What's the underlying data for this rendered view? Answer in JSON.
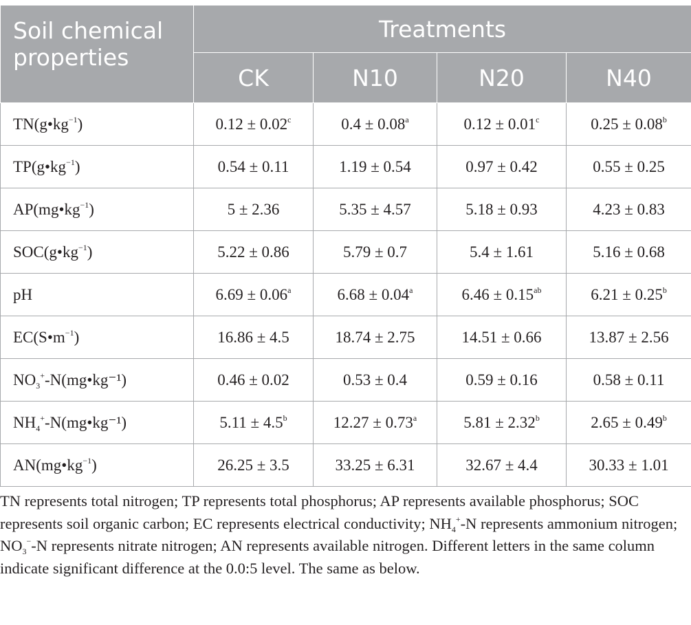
{
  "table": {
    "header": {
      "property_col": "Soil chemical properties",
      "treatments": "Treatments",
      "groups": [
        "CK",
        "N10",
        "N20",
        "N40"
      ]
    },
    "rows": [
      {
        "label": {
          "pre": "TN(g•kg",
          "sup": "−1",
          "sub": "",
          "post": ")"
        },
        "cells": [
          {
            "v": "0.12 ± 0.02",
            "s": "c"
          },
          {
            "v": "0.4 ± 0.08",
            "s": "a"
          },
          {
            "v": "0.12 ± 0.01",
            "s": "c"
          },
          {
            "v": "0.25 ± 0.08",
            "s": "b"
          }
        ]
      },
      {
        "label": {
          "pre": "TP(g•kg",
          "sup": "−1",
          "sub": "",
          "post": ")"
        },
        "cells": [
          {
            "v": "0.54 ± 0.11",
            "s": ""
          },
          {
            "v": "1.19 ± 0.54",
            "s": ""
          },
          {
            "v": "0.97 ± 0.42",
            "s": ""
          },
          {
            "v": "0.55 ± 0.25",
            "s": ""
          }
        ]
      },
      {
        "label": {
          "pre": "AP(mg•kg",
          "sup": "−1",
          "sub": "",
          "post": ")"
        },
        "cells": [
          {
            "v": "5 ± 2.36",
            "s": ""
          },
          {
            "v": "5.35 ± 4.57",
            "s": ""
          },
          {
            "v": "5.18 ± 0.93",
            "s": ""
          },
          {
            "v": "4.23 ± 0.83",
            "s": ""
          }
        ]
      },
      {
        "label": {
          "pre": "SOC(g•kg",
          "sup": "−1",
          "sub": "",
          "post": ")"
        },
        "cells": [
          {
            "v": "5.22 ± 0.86",
            "s": ""
          },
          {
            "v": "5.79 ± 0.7",
            "s": ""
          },
          {
            "v": "5.4 ± 1.61",
            "s": ""
          },
          {
            "v": "5.16 ± 0.68",
            "s": ""
          }
        ]
      },
      {
        "label": {
          "pre": "pH",
          "sup": "",
          "sub": "",
          "post": ""
        },
        "cells": [
          {
            "v": "6.69 ± 0.06",
            "s": "a"
          },
          {
            "v": "6.68 ± 0.04",
            "s": "a"
          },
          {
            "v": "6.46 ± 0.15",
            "s": "ab"
          },
          {
            "v": "6.21 ± 0.25",
            "s": "b"
          }
        ]
      },
      {
        "label": {
          "pre": "EC(S•m",
          "sup": "−1",
          "sub": "",
          "post": ")"
        },
        "cells": [
          {
            "v": "16.86 ± 4.5",
            "s": ""
          },
          {
            "v": "18.74 ± 2.75",
            "s": ""
          },
          {
            "v": "14.51 ± 0.66",
            "s": ""
          },
          {
            "v": "13.87 ± 2.56",
            "s": ""
          }
        ]
      },
      {
        "label": {
          "pre": "NO",
          "sub": "3",
          "sup": "+",
          "post": "-N(mg•kg⁻¹)"
        },
        "cells": [
          {
            "v": "0.46 ± 0.02",
            "s": ""
          },
          {
            "v": "0.53 ± 0.4",
            "s": ""
          },
          {
            "v": "0.59 ± 0.16",
            "s": ""
          },
          {
            "v": "0.58 ± 0.11",
            "s": ""
          }
        ]
      },
      {
        "label": {
          "pre": "NH",
          "sub": "4",
          "sup": "+",
          "post": "-N(mg•kg⁻¹)"
        },
        "cells": [
          {
            "v": "5.11 ± 4.5",
            "s": "b"
          },
          {
            "v": "12.27 ± 0.73",
            "s": "a"
          },
          {
            "v": "5.81 ± 2.32",
            "s": "b"
          },
          {
            "v": "2.65 ± 0.49",
            "s": "b"
          }
        ]
      },
      {
        "label": {
          "pre": "AN(mg•kg",
          "sup": "−1",
          "sub": "",
          "post": ")"
        },
        "cells": [
          {
            "v": "26.25 ± 3.5",
            "s": ""
          },
          {
            "v": "33.25 ± 6.31",
            "s": ""
          },
          {
            "v": "32.67 ± 4.4",
            "s": ""
          },
          {
            "v": "30.33 ± 1.01",
            "s": ""
          }
        ]
      }
    ]
  },
  "footnote": {
    "part1": "TN represents total nitrogen; TP represents total phosphorus; AP represents available phosphorus; SOC represents soil organic carbon; EC represents electrical conductivity; NH",
    "sub1": "4",
    "sup1": "+",
    "part2": "-N represents ammonium nitrogen; NO",
    "sub2": "3",
    "sup2": "−",
    "part3": "-N represents nitrate nitrogen; AN represents available nitrogen. Different letters in the same column indicate significant difference at the 0.0:5 level. The same as below."
  }
}
